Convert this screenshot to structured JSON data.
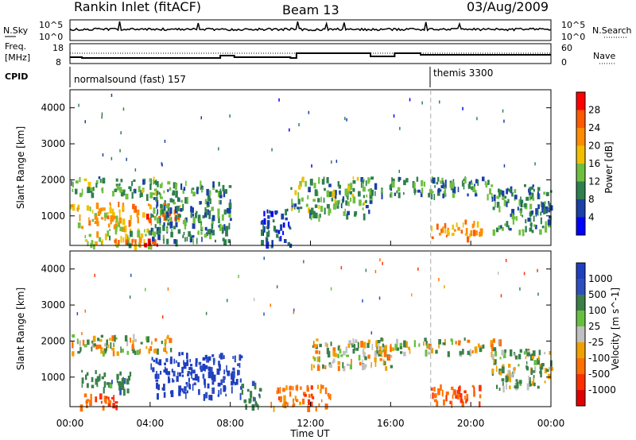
{
  "header": {
    "title": "Rankin Inlet (fitACF)",
    "beam": "Beam 13",
    "date": "03/Aug/2009"
  },
  "summary": {
    "nsky_label": "N.Sky",
    "nsky_ticks": [
      "10^5",
      "10^0"
    ],
    "nsearch_label": "N.Search",
    "freq_label_1": "Freq.",
    "freq_label_2": "[MHz]",
    "freq_ticks": [
      "18",
      "8"
    ],
    "nave_label": "Nave",
    "nave_ticks": [
      "60",
      "0"
    ],
    "cpid_label": "CPID",
    "cpid_segments": [
      {
        "name": "normalsound (fast) 157",
        "start_hour": 0
      },
      {
        "name": "themis 3300",
        "start_hour": 18
      }
    ]
  },
  "colors": {
    "power_scale": [
      "#0000ff",
      "#1a3fa6",
      "#2f7f4f",
      "#6fbf3f",
      "#f0c000",
      "#ff8c00",
      "#ff5a00",
      "#ff0000"
    ],
    "velocity_scale": [
      "#1f3fbf",
      "#2f4fc0",
      "#3a7f4a",
      "#66c040",
      "#c0c0c0",
      "#f0a000",
      "#ff7000",
      "#ff3000",
      "#e00000"
    ]
  },
  "chart_data": [
    {
      "type": "heatmap",
      "panel": "power",
      "xlabel": "",
      "ylabel": "Slant Range [km]",
      "x_ticks": [
        "00:00",
        "04:00",
        "08:00",
        "12:00",
        "16:00",
        "20:00",
        "00:00"
      ],
      "y_ticks": [
        1000,
        2000,
        3000,
        4000
      ],
      "xlim": [
        0,
        24
      ],
      "ylim": [
        180,
        4500
      ],
      "colorbar_label": "Power [dB]",
      "colorbar_ticks": [
        4,
        8,
        12,
        16,
        20,
        24,
        28
      ],
      "clim": [
        0,
        32
      ],
      "marker_hour": 18,
      "regions": [
        {
          "x": [
            0,
            4.5
          ],
          "y": [
            1600,
            2100
          ],
          "value": 12
        },
        {
          "x": [
            0,
            3.0
          ],
          "y": [
            700,
            1400
          ],
          "value": 20
        },
        {
          "x": [
            3.0,
            5.5
          ],
          "y": [
            900,
            1400
          ],
          "value": 24
        },
        {
          "x": [
            0.5,
            4.0
          ],
          "y": [
            200,
            700
          ],
          "value": 16
        },
        {
          "x": [
            2.0,
            4.5
          ],
          "y": [
            180,
            400
          ],
          "value": 28
        },
        {
          "x": [
            4.0,
            8.0
          ],
          "y": [
            300,
            2000
          ],
          "value": 10
        },
        {
          "x": [
            9.5,
            11.0
          ],
          "y": [
            180,
            1200
          ],
          "value": 6
        },
        {
          "x": [
            11.0,
            15.0
          ],
          "y": [
            1000,
            2100
          ],
          "value": 12
        },
        {
          "x": [
            15.0,
            21.0
          ],
          "y": [
            1600,
            2100
          ],
          "value": 10
        },
        {
          "x": [
            18.0,
            20.5
          ],
          "y": [
            400,
            900
          ],
          "value": 22
        },
        {
          "x": [
            21.0,
            24.0
          ],
          "y": [
            600,
            1900
          ],
          "value": 10
        }
      ]
    },
    {
      "type": "heatmap",
      "panel": "velocity",
      "xlabel": "Time UT",
      "ylabel": "Slant Range [km]",
      "x_ticks": [
        "00:00",
        "04:00",
        "08:00",
        "12:00",
        "16:00",
        "20:00",
        "00:00"
      ],
      "y_ticks": [
        1000,
        2000,
        3000,
        4000
      ],
      "xlim": [
        0,
        24
      ],
      "ylim": [
        180,
        4500
      ],
      "colorbar_label": "Velocity [m s^-1]",
      "colorbar_ticks": [
        "1000",
        "500",
        "100",
        "25",
        "-25",
        "-100",
        "-500",
        "-1000"
      ],
      "marker_hour": 18,
      "regions": [
        {
          "x": [
            0,
            5.0
          ],
          "y": [
            1700,
            2200
          ],
          "value": 0
        },
        {
          "x": [
            0.5,
            3.0
          ],
          "y": [
            600,
            1200
          ],
          "value": 200
        },
        {
          "x": [
            4.0,
            8.5
          ],
          "y": [
            500,
            1700
          ],
          "value": 800
        },
        {
          "x": [
            0.5,
            2.5
          ],
          "y": [
            200,
            600
          ],
          "value": -300
        },
        {
          "x": [
            8.5,
            9.5
          ],
          "y": [
            200,
            900
          ],
          "value": 200
        },
        {
          "x": [
            10.0,
            13.0
          ],
          "y": [
            180,
            800
          ],
          "value": -200
        },
        {
          "x": [
            12.0,
            16.0
          ],
          "y": [
            1300,
            2100
          ],
          "value": 0
        },
        {
          "x": [
            15.0,
            21.5
          ],
          "y": [
            1700,
            2100
          ],
          "value": 0
        },
        {
          "x": [
            18.0,
            20.5
          ],
          "y": [
            300,
            800
          ],
          "value": -300
        },
        {
          "x": [
            21.0,
            24.0
          ],
          "y": [
            700,
            1800
          ],
          "value": 50
        }
      ]
    }
  ]
}
